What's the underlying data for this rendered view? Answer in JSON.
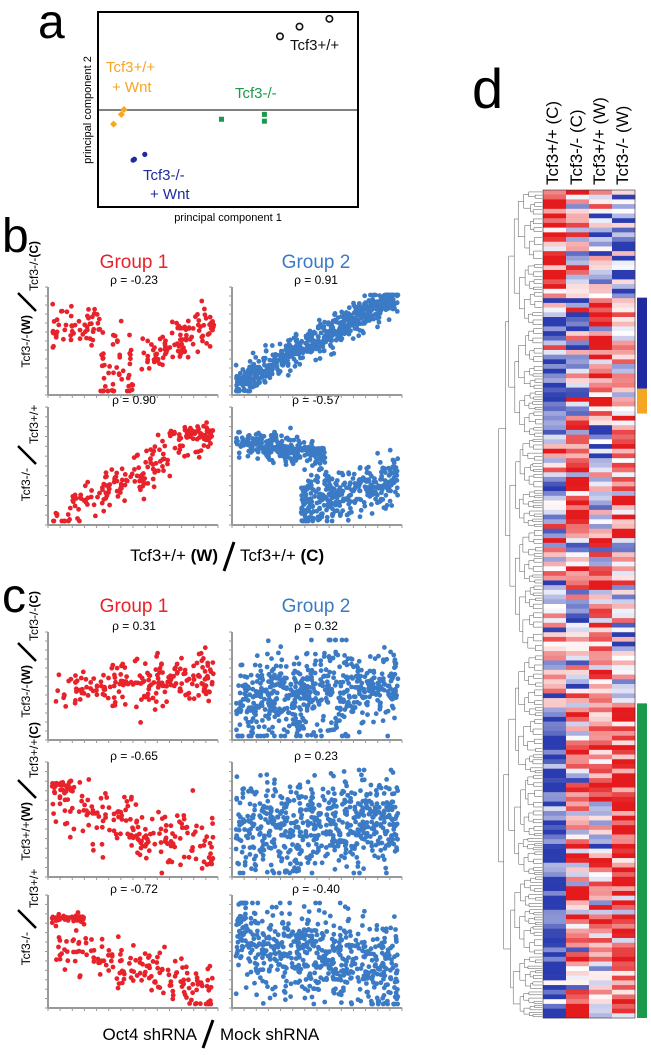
{
  "colors": {
    "red": "#e8222a",
    "blue": "#3b7ac4",
    "orange": "#f5a623",
    "green": "#1a9a4a",
    "navy": "#1f2aa0",
    "black": "#111111",
    "heat_red": "#e41a1c",
    "heat_blue": "#2b3cb0",
    "heat_white": "#ffffff"
  },
  "panels": {
    "a": "a",
    "b": "b",
    "c": "c",
    "d": "d"
  },
  "pca": {
    "xlabel": "principal component 1",
    "ylabel": "principal component 2",
    "labels": {
      "wt": "Tcf3+/+",
      "wt_wnt_1": "Tcf3+/+",
      "wt_wnt_2": "+ Wnt",
      "ko": "Tcf3-/-",
      "ko_wnt_1": "Tcf3-/-",
      "ko_wnt_2": "+ Wnt"
    }
  },
  "group_titles": {
    "b1": "Group 1",
    "b2": "Group 2",
    "c1": "Group 1",
    "c2": "Group 2"
  },
  "b_labels": {
    "row1_num": "Tcf3-/-",
    "row1_num_w": "(W)",
    "row1_den": "Tcf3-/-",
    "row1_den_c": "(C)",
    "row2_num": "Tcf3-/-",
    "row2_den": "Tcf3+/+",
    "x_num": "Tcf3+/+",
    "x_num_w": "(W)",
    "x_den": "Tcf3+/+",
    "x_den_c": "(C)"
  },
  "c_labels": {
    "row1_num": "Tcf3-/-",
    "row1_num_w": "(W)",
    "row1_den": "Tcf3-/-",
    "row1_den_c": "(C)",
    "row2_num": "Tcf3+/+",
    "row2_num_w": "(W)",
    "row2_den": "Tcf3+/+",
    "row2_den_c": "(C)",
    "row3_num": "Tcf3-/-",
    "row3_den": "Tcf3+/+",
    "x_num": "Oct4 shRNA",
    "x_den": "Mock shRNA"
  },
  "heatmap": {
    "columns": [
      "Tcf3+/+ (C)",
      "Tcf3-/- (C)",
      "Tcf3+/+ (W)",
      "Tcf3-/- (W)"
    ]
  },
  "chart_data": [
    {
      "id": "a",
      "type": "scatter",
      "title": "",
      "xlabel": "principal component 1",
      "ylabel": "principal component 2",
      "xlim": [
        -1,
        1
      ],
      "ylim": [
        -1,
        1
      ],
      "series": [
        {
          "name": "Tcf3+/+",
          "color": "#111111",
          "marker": "ring",
          "points": [
            [
              0.4,
              0.75
            ],
            [
              0.55,
              0.85
            ],
            [
              0.78,
              0.93
            ]
          ]
        },
        {
          "name": "Tcf3+/+ + Wnt",
          "color": "#f5a623",
          "marker": "diamond",
          "points": [
            [
              -0.88,
              -0.15
            ],
            [
              -0.82,
              -0.05
            ],
            [
              -0.8,
              0.0
            ]
          ]
        },
        {
          "name": "Tcf3-/-",
          "color": "#1a9a4a",
          "marker": "square",
          "points": [
            [
              -0.05,
              -0.1
            ],
            [
              0.28,
              -0.05
            ],
            [
              0.28,
              -0.12
            ]
          ]
        },
        {
          "name": "Tcf3-/- + Wnt",
          "color": "#1f2aa0",
          "marker": "circle",
          "points": [
            [
              -0.73,
              -0.52
            ],
            [
              -0.72,
              -0.51
            ],
            [
              -0.64,
              -0.46
            ]
          ]
        }
      ]
    },
    {
      "id": "b-g1-r1",
      "type": "scatter",
      "panel": "b",
      "group": "Group 1",
      "rho_label": "ρ = -0.23",
      "rho": -0.23,
      "n": 200,
      "pattern": "b1r1",
      "color": "#e8222a"
    },
    {
      "id": "b-g2-r1",
      "type": "scatter",
      "panel": "b",
      "group": "Group 2",
      "rho_label": "ρ = 0.91",
      "rho": 0.91,
      "n": 600,
      "pattern": "b2r1",
      "color": "#3b7ac4"
    },
    {
      "id": "b-g1-r2",
      "type": "scatter",
      "panel": "b",
      "group": "Group 1",
      "rho_label": "ρ = 0.90",
      "rho": 0.9,
      "n": 200,
      "pattern": "b1r2",
      "color": "#e8222a"
    },
    {
      "id": "b-g2-r2",
      "type": "scatter",
      "panel": "b",
      "group": "Group 2",
      "rho_label": "ρ = -0.57",
      "rho": -0.57,
      "n": 600,
      "pattern": "b2r2",
      "color": "#3b7ac4"
    },
    {
      "id": "c-g1-r1",
      "type": "scatter",
      "panel": "c",
      "group": "Group 1",
      "rho_label": "ρ = 0.31",
      "rho": 0.31,
      "n": 200,
      "pattern": "c1r1",
      "color": "#e8222a"
    },
    {
      "id": "c-g2-r1",
      "type": "scatter",
      "panel": "c",
      "group": "Group 2",
      "rho_label": "ρ = 0.32",
      "rho": 0.32,
      "n": 600,
      "pattern": "c2r1",
      "color": "#3b7ac4"
    },
    {
      "id": "c-g1-r2",
      "type": "scatter",
      "panel": "c",
      "group": "Group 1",
      "rho_label": "ρ = -0.65",
      "rho": -0.65,
      "n": 200,
      "pattern": "c1r2",
      "color": "#e8222a"
    },
    {
      "id": "c-g2-r2",
      "type": "scatter",
      "panel": "c",
      "group": "Group 2",
      "rho_label": "ρ = 0.23",
      "rho": 0.23,
      "n": 600,
      "pattern": "c2r2",
      "color": "#3b7ac4"
    },
    {
      "id": "c-g1-r3",
      "type": "scatter",
      "panel": "c",
      "group": "Group 1",
      "rho_label": "ρ = -0.72",
      "rho": -0.72,
      "n": 200,
      "pattern": "c1r3",
      "color": "#e8222a"
    },
    {
      "id": "c-g2-r3",
      "type": "scatter",
      "panel": "c",
      "group": "Group 2",
      "rho_label": "ρ = -0.40",
      "rho": -0.4,
      "n": 600,
      "pattern": "c2r3",
      "color": "#3b7ac4"
    },
    {
      "id": "d",
      "type": "heatmap",
      "columns": [
        "Tcf3+/+ (C)",
        "Tcf3-/- (C)",
        "Tcf3+/+ (W)",
        "Tcf3-/- (W)"
      ],
      "rows": 176,
      "side_bars": [
        {
          "color": "#1f2aa0",
          "row_start": 0.13,
          "row_end": 0.24
        },
        {
          "color": "#f5a623",
          "row_start": 0.24,
          "row_end": 0.27
        },
        {
          "color": "#1a9a4a",
          "row_start": 0.62,
          "row_end": 1.0
        }
      ],
      "blocks": [
        {
          "from": 0.0,
          "to": 0.13,
          "profile": [
            0.9,
            0.1,
            -0.3,
            -0.5
          ]
        },
        {
          "from": 0.13,
          "to": 0.27,
          "profile": [
            -0.7,
            -0.4,
            0.8,
            0.1
          ]
        },
        {
          "from": 0.27,
          "to": 0.42,
          "profile": [
            -0.2,
            0.7,
            -0.4,
            0.6
          ]
        },
        {
          "from": 0.42,
          "to": 0.62,
          "profile": [
            0.2,
            -0.2,
            0.6,
            -0.2
          ]
        },
        {
          "from": 0.62,
          "to": 1.0,
          "profile": [
            -0.9,
            0.4,
            0.3,
            0.8
          ]
        }
      ]
    }
  ]
}
